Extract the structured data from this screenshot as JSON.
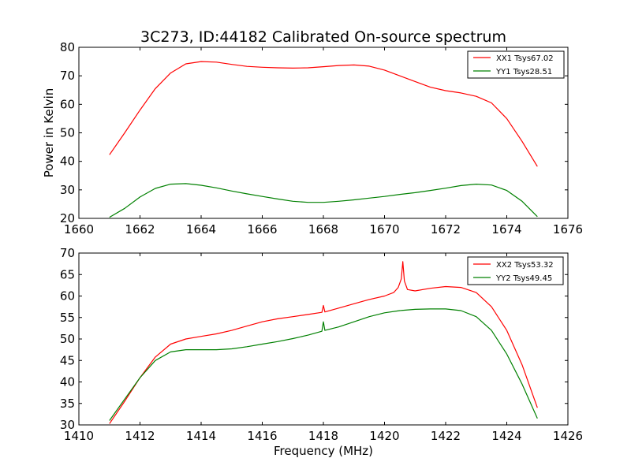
{
  "colors": {
    "xx": "#ff0000",
    "yy": "#008000",
    "background": "#ffffff",
    "axes": "#000000"
  },
  "chart_data": [
    {
      "type": "line",
      "title": "3C273, ID:44182 Calibrated On-source spectrum",
      "xlabel": "",
      "ylabel": "Power in Kelvin",
      "xlim": [
        1660,
        1676
      ],
      "ylim": [
        20,
        80
      ],
      "xticks": [
        "1660",
        "1662",
        "1664",
        "1666",
        "1668",
        "1670",
        "1672",
        "1674",
        "1676"
      ],
      "yticks": [
        "20",
        "30",
        "40",
        "50",
        "60",
        "70",
        "80"
      ],
      "grid": false,
      "legend_position": "top-right",
      "series": [
        {
          "name": "XX1 Tsys67.02",
          "color": "#ff0000",
          "points": [
            [
              1661.0,
              42.3
            ],
            [
              1661.5,
              50.0
            ],
            [
              1662.0,
              58.0
            ],
            [
              1662.5,
              65.5
            ],
            [
              1663.0,
              71.0
            ],
            [
              1663.5,
              74.2
            ],
            [
              1664.0,
              75.0
            ],
            [
              1664.5,
              74.8
            ],
            [
              1665.0,
              74.0
            ],
            [
              1665.5,
              73.3
            ],
            [
              1666.0,
              73.0
            ],
            [
              1666.5,
              72.8
            ],
            [
              1667.0,
              72.7
            ],
            [
              1667.5,
              72.8
            ],
            [
              1668.0,
              73.2
            ],
            [
              1668.5,
              73.6
            ],
            [
              1669.0,
              73.8
            ],
            [
              1669.5,
              73.4
            ],
            [
              1670.0,
              72.0
            ],
            [
              1670.5,
              70.0
            ],
            [
              1671.0,
              68.0
            ],
            [
              1671.5,
              66.0
            ],
            [
              1672.0,
              64.8
            ],
            [
              1672.5,
              64.0
            ],
            [
              1673.0,
              62.8
            ],
            [
              1673.5,
              60.5
            ],
            [
              1674.0,
              55.0
            ],
            [
              1674.5,
              47.0
            ],
            [
              1675.0,
              38.2
            ]
          ]
        },
        {
          "name": "YY1 Tsys28.51",
          "color": "#008000",
          "points": [
            [
              1661.0,
              20.4
            ],
            [
              1661.5,
              23.5
            ],
            [
              1662.0,
              27.5
            ],
            [
              1662.5,
              30.5
            ],
            [
              1663.0,
              32.0
            ],
            [
              1663.5,
              32.2
            ],
            [
              1664.0,
              31.6
            ],
            [
              1664.5,
              30.7
            ],
            [
              1665.0,
              29.6
            ],
            [
              1665.5,
              28.6
            ],
            [
              1666.0,
              27.7
            ],
            [
              1666.5,
              26.8
            ],
            [
              1667.0,
              26.0
            ],
            [
              1667.5,
              25.6
            ],
            [
              1668.0,
              25.6
            ],
            [
              1668.5,
              26.0
            ],
            [
              1669.0,
              26.5
            ],
            [
              1669.5,
              27.1
            ],
            [
              1670.0,
              27.7
            ],
            [
              1670.5,
              28.4
            ],
            [
              1671.0,
              29.0
            ],
            [
              1671.5,
              29.8
            ],
            [
              1672.0,
              30.6
            ],
            [
              1672.5,
              31.5
            ],
            [
              1673.0,
              32.0
            ],
            [
              1673.5,
              31.7
            ],
            [
              1674.0,
              29.8
            ],
            [
              1674.5,
              26.0
            ],
            [
              1675.0,
              20.6
            ]
          ]
        }
      ]
    },
    {
      "type": "line",
      "title": "",
      "xlabel": "Frequency (MHz)",
      "ylabel": "",
      "xlim": [
        1410,
        1426
      ],
      "ylim": [
        30,
        70
      ],
      "xticks": [
        "1410",
        "1412",
        "1414",
        "1416",
        "1418",
        "1420",
        "1422",
        "1424",
        "1426"
      ],
      "yticks": [
        "30",
        "35",
        "40",
        "45",
        "50",
        "55",
        "60",
        "65",
        "70"
      ],
      "grid": false,
      "legend_position": "top-right",
      "series": [
        {
          "name": "XX2 Tsys53.32",
          "color": "#ff0000",
          "points": [
            [
              1411.0,
              30.3
            ],
            [
              1411.5,
              35.5
            ],
            [
              1412.0,
              41.0
            ],
            [
              1412.5,
              45.8
            ],
            [
              1413.0,
              48.8
            ],
            [
              1413.5,
              50.0
            ],
            [
              1414.0,
              50.6
            ],
            [
              1414.5,
              51.2
            ],
            [
              1415.0,
              52.0
            ],
            [
              1415.5,
              53.0
            ],
            [
              1416.0,
              54.0
            ],
            [
              1416.5,
              54.7
            ],
            [
              1417.0,
              55.2
            ],
            [
              1417.5,
              55.7
            ],
            [
              1417.95,
              56.2
            ],
            [
              1418.0,
              57.8
            ],
            [
              1418.05,
              56.3
            ],
            [
              1418.5,
              57.2
            ],
            [
              1419.0,
              58.2
            ],
            [
              1419.5,
              59.2
            ],
            [
              1420.0,
              60.0
            ],
            [
              1420.3,
              60.8
            ],
            [
              1420.45,
              62.0
            ],
            [
              1420.55,
              64.0
            ],
            [
              1420.6,
              68.0
            ],
            [
              1420.65,
              63.5
            ],
            [
              1420.75,
              61.5
            ],
            [
              1421.0,
              61.2
            ],
            [
              1421.5,
              61.8
            ],
            [
              1422.0,
              62.2
            ],
            [
              1422.5,
              62.0
            ],
            [
              1423.0,
              60.8
            ],
            [
              1423.5,
              57.5
            ],
            [
              1424.0,
              52.0
            ],
            [
              1424.5,
              44.0
            ],
            [
              1425.0,
              34.0
            ]
          ]
        },
        {
          "name": "YY2 Tsys49.45",
          "color": "#008000",
          "points": [
            [
              1411.0,
              31.0
            ],
            [
              1411.5,
              36.0
            ],
            [
              1412.0,
              41.0
            ],
            [
              1412.5,
              45.0
            ],
            [
              1413.0,
              47.0
            ],
            [
              1413.5,
              47.5
            ],
            [
              1414.0,
              47.5
            ],
            [
              1414.5,
              47.5
            ],
            [
              1415.0,
              47.7
            ],
            [
              1415.5,
              48.2
            ],
            [
              1416.0,
              48.8
            ],
            [
              1416.5,
              49.4
            ],
            [
              1417.0,
              50.1
            ],
            [
              1417.5,
              50.9
            ],
            [
              1417.95,
              51.8
            ],
            [
              1418.0,
              54.0
            ],
            [
              1418.05,
              52.0
            ],
            [
              1418.5,
              52.8
            ],
            [
              1419.0,
              54.0
            ],
            [
              1419.5,
              55.2
            ],
            [
              1420.0,
              56.1
            ],
            [
              1420.5,
              56.6
            ],
            [
              1421.0,
              56.9
            ],
            [
              1421.5,
              57.0
            ],
            [
              1422.0,
              57.0
            ],
            [
              1422.5,
              56.6
            ],
            [
              1423.0,
              55.2
            ],
            [
              1423.5,
              52.0
            ],
            [
              1424.0,
              46.5
            ],
            [
              1424.5,
              39.5
            ],
            [
              1425.0,
              31.5
            ]
          ]
        }
      ]
    }
  ]
}
